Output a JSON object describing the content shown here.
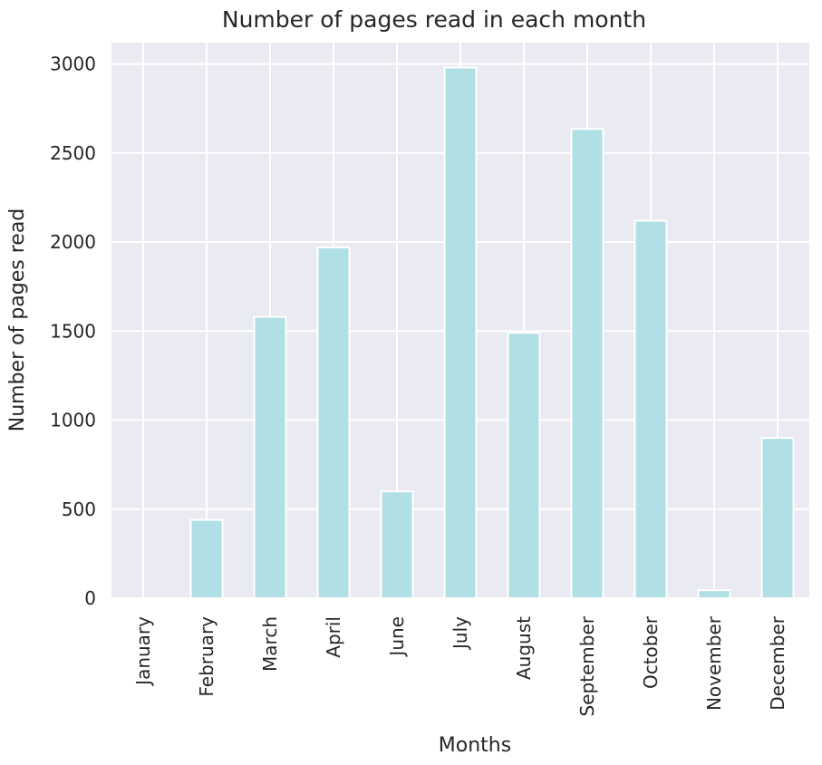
{
  "chart_data": {
    "type": "bar",
    "title": "Number of pages read in each month",
    "xlabel": "Months",
    "ylabel": "Number of pages read",
    "categories": [
      "January",
      "February",
      "March",
      "April",
      "June",
      "July",
      "August",
      "September",
      "October",
      "November",
      "December"
    ],
    "values": [
      0,
      440,
      1580,
      1970,
      600,
      2980,
      1490,
      2635,
      2120,
      45,
      900
    ],
    "ylim": [
      0,
      3120
    ],
    "yticks": [
      0,
      500,
      1000,
      1500,
      2000,
      2500,
      3000
    ],
    "grid": true,
    "colors": {
      "bar": "#b0dfe5",
      "plot_background": "#eaeaf2",
      "grid": "#ffffff",
      "text": "#262626"
    }
  }
}
